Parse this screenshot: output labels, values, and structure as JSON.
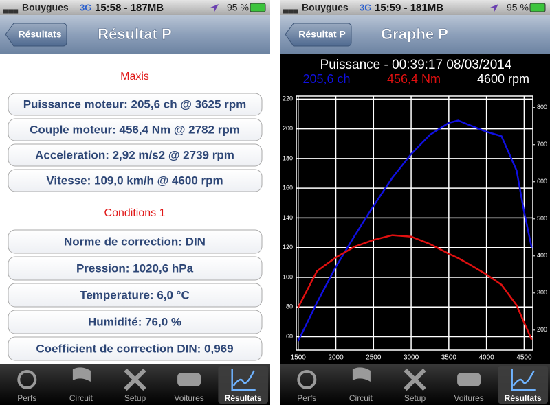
{
  "status": {
    "carrier": "Bouygues",
    "network": "3G",
    "battery": "95 %"
  },
  "tabs": [
    "Perfs",
    "Circuit",
    "Setup",
    "Voitures",
    "Résultats"
  ],
  "left": {
    "time": "15:58 - 187MB",
    "back": "Résultats",
    "title": "Résultat P",
    "sections": [
      {
        "heading": "Maxis",
        "rows": [
          "Puissance moteur: 205,6 ch @ 3625 rpm",
          "Couple moteur: 456,4 Nm @ 2782 rpm",
          "Acceleration: 2,92 m/s2 @ 2739 rpm",
          "Vitesse: 109,0 km/h @ 4600 rpm"
        ]
      },
      {
        "heading": "Conditions 1",
        "rows": [
          "Norme de correction: DIN",
          "Pression: 1020,6 hPa",
          "Temperature: 6,0 °C",
          "Humidité: 76,0 %",
          "Coefficient de correction DIN: 0,969"
        ]
      }
    ]
  },
  "right": {
    "time": "15:59 - 181MB",
    "back": "Résultat P",
    "title": "Graphe P"
  },
  "chart_data": {
    "type": "line",
    "title": "Puissance - 00:39:17 08/03/2014",
    "subtitle": "4600 rpm",
    "x": [
      1500,
      1750,
      2000,
      2250,
      2500,
      2750,
      3000,
      3250,
      3500,
      3625,
      3750,
      4000,
      4200,
      4400,
      4500,
      4600
    ],
    "series": [
      {
        "name": "205,6 ch",
        "color": "#1010e0",
        "values": [
          57,
          83,
          107,
          128,
          148,
          167,
          183,
          196,
          204,
          205.6,
          203,
          198,
          195,
          172,
          144,
          120
        ]
      },
      {
        "name": "456,4 Nm",
        "color": "#e01010",
        "axis": "y2",
        "values": [
          261,
          359,
          396,
          425,
          443,
          456,
          452,
          432,
          406,
          394,
          380,
          350,
          322,
          267,
          220,
          174
        ]
      }
    ],
    "xlim": [
      1475,
      4615
    ],
    "xticks": [
      1500,
      2000,
      2500,
      3000,
      3500,
      4000,
      4500
    ],
    "ylim": [
      51,
      222
    ],
    "yticks": [
      60,
      80,
      100,
      120,
      140,
      160,
      180,
      200,
      220
    ],
    "y2lim": [
      146,
      831
    ],
    "y2ticks": [
      200,
      300,
      400,
      500,
      600,
      700,
      800
    ],
    "grid": true
  }
}
